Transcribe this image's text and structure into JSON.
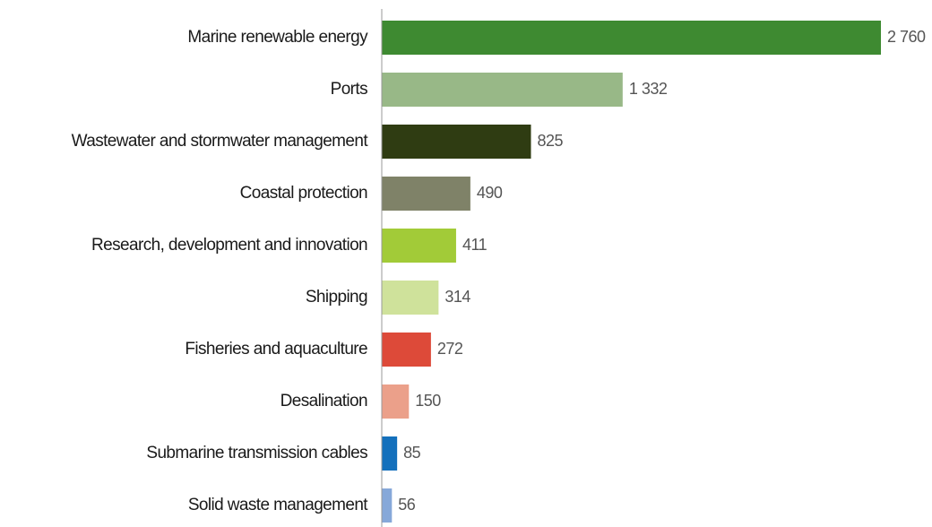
{
  "chart_data": {
    "type": "barh",
    "categories": [
      "Marine renewable  energy",
      "Ports",
      "Wastewater and stormwater management",
      "Coastal protection",
      "Research, development and innovation",
      "Shipping",
      "Fisheries and aquaculture",
      "Desalination",
      "Submarine transmission cables",
      "Solid waste management"
    ],
    "values": [
      2760,
      1332,
      825,
      490,
      411,
      314,
      272,
      150,
      85,
      56
    ],
    "value_labels": [
      "2 760",
      "1 332",
      "825",
      "490",
      "411",
      "314",
      "272",
      "150",
      "85",
      "56"
    ],
    "colors": [
      "#3e8a31",
      "#98b887",
      "#2f3c12",
      "#7f8268",
      "#a2cb38",
      "#cfe29b",
      "#dd4a39",
      "#eba08a",
      "#1470bc",
      "#86a8d9"
    ]
  }
}
